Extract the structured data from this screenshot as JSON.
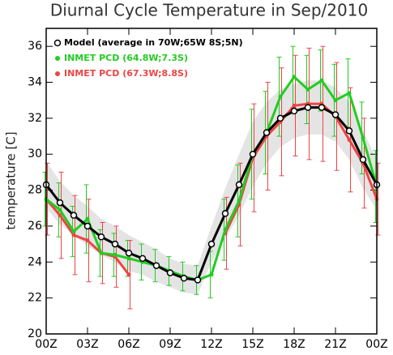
{
  "chart_data": {
    "type": "line",
    "title": "Diurnal Cycle Temperature in Sep/2010",
    "y_label": "temperature [C]",
    "x": [
      0,
      1,
      2,
      3,
      4,
      5,
      6,
      7,
      8,
      9,
      10,
      11,
      12,
      13,
      14,
      15,
      16,
      17,
      18,
      19,
      20,
      21,
      22,
      23,
      24
    ],
    "xlim": [
      0,
      24
    ],
    "xticks": [
      {
        "value": 0,
        "label": "00Z"
      },
      {
        "value": 3,
        "label": "03Z"
      },
      {
        "value": 6,
        "label": "06Z"
      },
      {
        "value": 9,
        "label": "09Z"
      },
      {
        "value": 12,
        "label": "12Z"
      },
      {
        "value": 15,
        "label": "15Z"
      },
      {
        "value": 18,
        "label": "18Z"
      },
      {
        "value": 21,
        "label": "21Z"
      },
      {
        "value": 24,
        "label": "00Z"
      }
    ],
    "ylim": [
      20,
      37
    ],
    "yticks": [
      20,
      22,
      24,
      26,
      28,
      30,
      32,
      34,
      36
    ],
    "legend": "upper left",
    "series": [
      {
        "name": "Model (average in 70W;65W 8S;5N)",
        "color": "#000000",
        "marker": "open-circle",
        "band_color": "#e4e4e4",
        "values": [
          28.3,
          27.3,
          26.6,
          26.0,
          25.4,
          25.0,
          24.5,
          24.2,
          23.8,
          23.4,
          23.1,
          23.0,
          25.0,
          26.7,
          28.3,
          30.0,
          31.2,
          32.0,
          32.4,
          32.6,
          32.6,
          32.2,
          31.3,
          29.7,
          28.3
        ],
        "spread": [
          1.3,
          1.2,
          1.1,
          1.1,
          1.0,
          1.0,
          1.0,
          0.9,
          0.9,
          0.8,
          0.8,
          0.8,
          1.0,
          1.4,
          1.7,
          1.8,
          1.7,
          1.6,
          1.5,
          1.5,
          1.5,
          1.5,
          1.6,
          1.6,
          1.4
        ]
      },
      {
        "name": "INMET PCD (64.8W;7.3S)",
        "color": "#22cc22",
        "marker": "dot",
        "values": [
          27.5,
          26.9,
          25.7,
          26.4,
          24.5,
          24.4,
          24.2,
          24.0,
          23.8,
          23.5,
          23.2,
          23.0,
          23.3,
          25.8,
          27.4,
          30.0,
          31.2,
          33.2,
          34.3,
          33.6,
          34.1,
          33.0,
          33.4,
          30.9,
          28.2
        ],
        "errors": [
          1.5,
          1.5,
          1.4,
          1.9,
          1.3,
          1.2,
          1.0,
          1.0,
          0.9,
          0.8,
          0.8,
          0.8,
          1.3,
          1.7,
          2.0,
          2.5,
          2.3,
          2.2,
          1.7,
          1.9,
          1.7,
          2.0,
          1.9,
          2.0,
          2.0
        ]
      },
      {
        "name": "INMET PCD (67.3W;8.8S)",
        "color": "#ee4444",
        "marker": "dot",
        "values": [
          27.5,
          26.6,
          25.5,
          25.2,
          24.5,
          24.3,
          23.3,
          null,
          null,
          null,
          null,
          null,
          null,
          25.6,
          27.2,
          29.8,
          31.0,
          31.8,
          32.7,
          32.8,
          32.8,
          32.1,
          30.8,
          29.5,
          27.5
        ],
        "errors": [
          2.0,
          2.4,
          2.2,
          2.3,
          1.7,
          1.7,
          1.9,
          null,
          null,
          null,
          null,
          null,
          null,
          2.0,
          2.3,
          3.0,
          3.0,
          3.0,
          2.8,
          3.1,
          3.2,
          3.0,
          2.9,
          2.5,
          2.0
        ]
      }
    ]
  }
}
